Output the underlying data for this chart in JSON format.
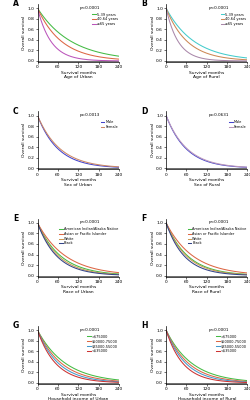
{
  "panels": [
    {
      "label": "A",
      "title": "Survival months\nAge of Urban",
      "pval": "p<0.0001",
      "series": [
        {
          "name": "5-39 years",
          "color": "#44bb44",
          "shape": "exp",
          "rate": 0.01
        },
        {
          "name": "40-64 years",
          "color": "#dd6644",
          "shape": "exp",
          "rate": 0.014
        },
        {
          "name": "≥65 years",
          "color": "#bb55bb",
          "shape": "exp",
          "rate": 0.025
        }
      ]
    },
    {
      "label": "B",
      "title": "Survival months\nAge of Rural",
      "pval": "p<0.0001",
      "series": [
        {
          "name": "5-39 years",
          "color": "#44cccc",
          "shape": "exp",
          "rate": 0.012
        },
        {
          "name": "40-64 years",
          "color": "#cc8855",
          "shape": "exp",
          "rate": 0.016
        },
        {
          "name": "≥65 years",
          "color": "#aa88aa",
          "shape": "exp",
          "rate": 0.028
        }
      ]
    },
    {
      "label": "C",
      "title": "Survival months\nSex of Urban",
      "pval": "p=0.0013",
      "series": [
        {
          "name": "Male",
          "color": "#4444cc",
          "shape": "exp",
          "rate": 0.0165
        },
        {
          "name": "Female",
          "color": "#cc8866",
          "shape": "exp",
          "rate": 0.015
        }
      ]
    },
    {
      "label": "D",
      "title": "Survival months\nSex of Rural",
      "pval": "p=0.0631",
      "series": [
        {
          "name": "Male",
          "color": "#4444cc",
          "shape": "exp",
          "rate": 0.0168
        },
        {
          "name": "Female",
          "color": "#bb99bb",
          "shape": "exp",
          "rate": 0.016
        }
      ]
    },
    {
      "label": "E",
      "title": "Survival months\nRace of Urban",
      "pval": "p<0.0001",
      "series": [
        {
          "name": "American Indian/Alaska Native",
          "color": "#44bb44",
          "shape": "exp",
          "rate": 0.0145
        },
        {
          "name": "Asian or Pacific Islander",
          "color": "#dd6644",
          "shape": "exp",
          "rate": 0.012
        },
        {
          "name": "White",
          "color": "#cc9955",
          "shape": "exp",
          "rate": 0.016
        },
        {
          "name": "Black",
          "color": "#334488",
          "shape": "exp",
          "rate": 0.0175
        }
      ]
    },
    {
      "label": "F",
      "title": "Survival months\nRace of Rural",
      "pval": "p<0.0001",
      "series": [
        {
          "name": "American Indian/Alaska Native",
          "color": "#44bb44",
          "shape": "exp",
          "rate": 0.0155
        },
        {
          "name": "Asian or Pacific Islander",
          "color": "#dd6644",
          "shape": "exp",
          "rate": 0.0125
        },
        {
          "name": "White",
          "color": "#cc9955",
          "shape": "exp",
          "rate": 0.0165
        },
        {
          "name": "Black",
          "color": "#334488",
          "shape": "exp",
          "rate": 0.0185
        }
      ]
    },
    {
      "label": "G",
      "title": "Survival months\nHousehold income of Urban",
      "pval": "p<0.0001",
      "series": [
        {
          "name": ">$75000",
          "color": "#44bb44",
          "shape": "exp",
          "rate": 0.012
        },
        {
          "name": "$50000-75000",
          "color": "#dd6644",
          "shape": "exp",
          "rate": 0.014
        },
        {
          "name": "$35000-55000",
          "color": "#4499cc",
          "shape": "exp",
          "rate": 0.016
        },
        {
          "name": "<$35000",
          "color": "#cc3333",
          "shape": "exp",
          "rate": 0.0185
        }
      ]
    },
    {
      "label": "H",
      "title": "Survival months\nHousehold income of Rural",
      "pval": "p<0.0001",
      "series": [
        {
          "name": ">$75000",
          "color": "#44bb44",
          "shape": "exp",
          "rate": 0.013
        },
        {
          "name": "$50000-75000",
          "color": "#dd6644",
          "shape": "exp",
          "rate": 0.015
        },
        {
          "name": "$35000-55000",
          "color": "#4499cc",
          "shape": "exp",
          "rate": 0.017
        },
        {
          "name": "<$35000",
          "color": "#cc3333",
          "shape": "exp",
          "rate": 0.02
        }
      ]
    }
  ],
  "xmax": 240,
  "xticks": [
    0,
    60,
    120,
    180,
    240
  ],
  "yticks": [
    0.0,
    0.2,
    0.4,
    0.6,
    0.8,
    1.0
  ],
  "ylabel": "Overall survival",
  "bg_color": "#ffffff"
}
